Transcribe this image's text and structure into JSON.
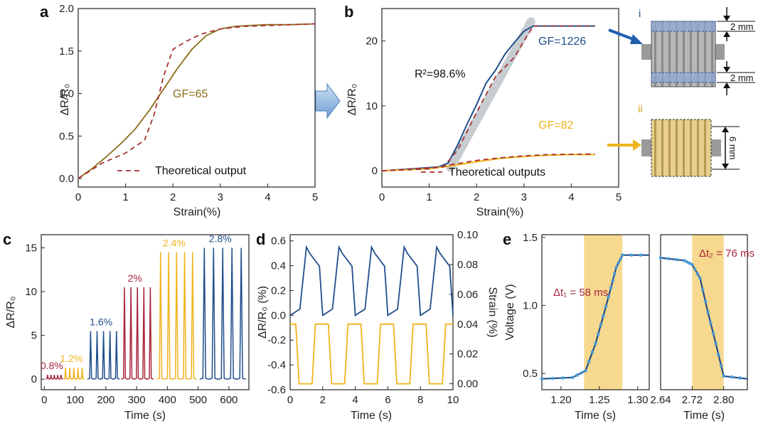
{
  "chart_data": [
    {
      "panel": "a",
      "type": "line",
      "xlabel": "Strain(%)",
      "ylabel": "ΔR/R₀",
      "xlim": [
        0,
        5
      ],
      "ylim": [
        -0.1,
        2.0
      ],
      "xticks": [
        "0",
        "1",
        "2",
        "3",
        "4",
        "5"
      ],
      "yticks": [
        "0.0",
        "0.5",
        "1.0",
        "1.5",
        "2.0"
      ],
      "annotations": [
        "GF=65"
      ],
      "legend": [
        "Theoretical output"
      ],
      "legend_position": "bottom-right",
      "series": [
        {
          "x": [
            0,
            0.3,
            0.6,
            0.9,
            1.2,
            1.5,
            1.8,
            2.1,
            2.4,
            2.7,
            3.0,
            3.3,
            3.6,
            4.0,
            4.5,
            5.0
          ],
          "values": [
            0.0,
            0.12,
            0.26,
            0.41,
            0.58,
            0.8,
            1.05,
            1.3,
            1.52,
            1.68,
            1.76,
            1.79,
            1.8,
            1.81,
            1.81,
            1.82
          ],
          "color": "#8a6d16"
        },
        {
          "name": "Theoretical output",
          "x": [
            0,
            0.5,
            1.0,
            1.4,
            1.6,
            1.8,
            2.0,
            2.3,
            2.6,
            3.0,
            3.5,
            4.0,
            5.0
          ],
          "values": [
            0.0,
            0.18,
            0.3,
            0.45,
            0.75,
            1.2,
            1.52,
            1.62,
            1.7,
            1.76,
            1.79,
            1.8,
            1.82
          ],
          "color": "#a83232",
          "dash": true
        }
      ]
    },
    {
      "panel": "b",
      "type": "line",
      "xlabel": "Strain(%)",
      "ylabel": "ΔR/R₀",
      "xlim": [
        0,
        5
      ],
      "ylim": [
        -2.5,
        25
      ],
      "xticks": [
        "0",
        "1",
        "2",
        "3",
        "4",
        "5"
      ],
      "yticks": [
        "0",
        "10",
        "20"
      ],
      "annotations": [
        "GF=1226",
        "R²=98.6%",
        "GF=82"
      ],
      "legend": [
        "Theoretical outputs"
      ],
      "legend_position": "bottom",
      "series": [
        {
          "x": [
            0,
            1.2,
            1.4,
            1.6,
            1.8,
            2.0,
            2.2,
            2.4,
            2.6,
            2.8,
            3.0,
            3.2,
            3.5,
            4.0,
            4.5
          ],
          "values": [
            0,
            0.6,
            1.2,
            4.0,
            7.2,
            10.2,
            13.5,
            15.5,
            18.0,
            19.8,
            21.5,
            22.3,
            22.3,
            22.3,
            22.3
          ],
          "color": "#1f4e8c"
        },
        {
          "x": [
            0,
            1.0,
            1.5,
            2.0,
            2.5,
            3.0,
            3.5,
            4.0,
            4.5
          ],
          "values": [
            0,
            0.3,
            0.8,
            1.4,
            1.9,
            2.2,
            2.4,
            2.5,
            2.5
          ],
          "color": "#f0b41e"
        },
        {
          "name": "Theoretical outputs",
          "x": [
            0,
            1.3,
            1.6,
            2.0,
            2.4,
            2.8,
            3.0,
            3.2,
            4.5
          ],
          "values": [
            0,
            0.6,
            3.2,
            9.0,
            14.5,
            17.5,
            20.0,
            22.3,
            22.3
          ],
          "color": "#a83232",
          "dash": true
        },
        {
          "name": "Theoretical outputs",
          "x": [
            0,
            1.0,
            1.5,
            2.0,
            2.5,
            3.0,
            3.5,
            4.5
          ],
          "values": [
            0,
            0.3,
            1.0,
            1.6,
            2.0,
            2.3,
            2.5,
            2.6
          ],
          "color": "#a83232",
          "dash": true
        }
      ],
      "insets": [
        {
          "label": "i",
          "dims": [
            "2 mm",
            "2 mm"
          ]
        },
        {
          "label": "ii",
          "dims": [
            "6 mm"
          ]
        }
      ]
    },
    {
      "panel": "c",
      "type": "line",
      "xlabel": "Time (s)",
      "ylabel": "ΔR/R₀",
      "xlim": [
        -10,
        665
      ],
      "ylim": [
        -1.2,
        16.5
      ],
      "xticks": [
        "0",
        "100",
        "200",
        "300",
        "400",
        "500",
        "600"
      ],
      "yticks": [
        "0",
        "5",
        "10",
        "15"
      ],
      "groups": [
        {
          "label": "0.8%",
          "start": 5,
          "end": 60,
          "peak": 0.5,
          "color": "#a8263d"
        },
        {
          "label": "1.2%",
          "start": 62,
          "end": 130,
          "peak": 1.3,
          "color": "#f0b41e"
        },
        {
          "label": "1.6%",
          "start": 140,
          "end": 245,
          "peak": 5.5,
          "color": "#1f4e8c"
        },
        {
          "label": "2%",
          "start": 250,
          "end": 355,
          "peak": 10.5,
          "color": "#a8263d"
        },
        {
          "label": "2.4%",
          "start": 365,
          "end": 495,
          "peak": 14.5,
          "color": "#f0b41e"
        },
        {
          "label": "2.8%",
          "start": 505,
          "end": 655,
          "peak": 15.0,
          "color": "#1f4e8c"
        }
      ]
    },
    {
      "panel": "d",
      "type": "line",
      "xlabel": "Time (s)",
      "ylabel": "ΔR/R₀ (%)",
      "ylabel_right": "Strain (%)",
      "xlim": [
        0,
        10
      ],
      "ylim": [
        -0.6,
        0.65
      ],
      "ylim_right": [
        -0.004,
        0.1
      ],
      "xticks": [
        "0",
        "2",
        "4",
        "6",
        "8",
        "10"
      ],
      "yticks": [
        "-0.6",
        "-0.4",
        "-0.2",
        "0.0",
        "0.2",
        "0.4",
        "0.6"
      ],
      "yticks_right": [
        "0.00",
        "0.02",
        "0.04",
        "0.06",
        "0.08",
        "0.10"
      ],
      "series": [
        {
          "name": "ΔR/R₀",
          "period": 2.0,
          "low": 0.0,
          "high": 0.55,
          "color": "#1f4e8c"
        },
        {
          "name": "Strain",
          "period": 2.0,
          "low": 0.0,
          "high": 0.04,
          "color": "#f0b41e",
          "axis": "right"
        }
      ]
    },
    {
      "panel": "e",
      "type": "line",
      "xlabel": "Time (s)",
      "ylabel": "Voltage (V)",
      "subplots": [
        {
          "xlim": [
            1.175,
            1.315
          ],
          "xticks": [
            "1.20",
            "1.25",
            "1.30"
          ],
          "band": [
            1.23,
            1.28
          ],
          "annotation": "Δt₁ = 58 ms",
          "x": [
            1.175,
            1.215,
            1.232,
            1.245,
            1.255,
            1.265,
            1.272,
            1.28,
            1.315
          ],
          "values": [
            0.46,
            0.47,
            0.52,
            0.72,
            0.92,
            1.13,
            1.28,
            1.37,
            1.37
          ]
        },
        {
          "xlim": [
            2.64,
            2.86
          ],
          "xticks": [
            "2.64",
            "2.72",
            "2.80"
          ],
          "band": [
            2.72,
            2.8
          ],
          "annotation": "Δt₂ = 76 ms",
          "x": [
            2.64,
            2.7,
            2.72,
            2.74,
            2.76,
            2.78,
            2.8,
            2.86
          ],
          "values": [
            1.35,
            1.33,
            1.3,
            1.2,
            0.95,
            0.72,
            0.48,
            0.46
          ]
        }
      ],
      "ylim": [
        0.38,
        1.52
      ],
      "yticks": [
        "0.5",
        "1.0",
        "1.5"
      ],
      "line_color": "#1f4e8c",
      "band_color": "#f5d27a"
    }
  ],
  "panel_labels": [
    "a",
    "b",
    "c",
    "d",
    "e"
  ]
}
